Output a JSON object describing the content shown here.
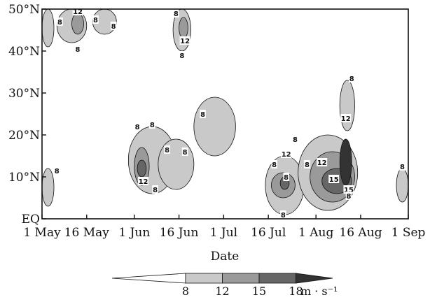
{
  "chart_data": {
    "type": "heatmap",
    "xlabel": "Date",
    "x_ticks": [
      "1 May",
      "16 May",
      "1 Jun",
      "16 Jun",
      "1 Jul",
      "16 Jul",
      "1 Aug",
      "16 Aug",
      "1 Sep"
    ],
    "x_range": [
      "1 May",
      "1 Sep"
    ],
    "y_ticks": [
      "EQ",
      "10°N",
      "20°N",
      "30°N",
      "40°N",
      "50°N"
    ],
    "y_range": [
      0,
      50
    ],
    "levels": [
      8,
      12,
      15,
      18
    ],
    "level_colors": [
      "#ffffff",
      "#c9c9c9",
      "#9a9a9a",
      "#666666",
      "#333333"
    ],
    "colorbar_unit": "m · s⁻¹",
    "contour_labels": [
      {
        "text": "8",
        "date": "6 May",
        "lat": 11.5
      },
      {
        "text": "8",
        "date": "7 May",
        "lat": 47
      },
      {
        "text": "12",
        "date": "13 May",
        "lat": 49.5
      },
      {
        "text": "8",
        "date": "13 May",
        "lat": 40.5
      },
      {
        "text": "8",
        "date": "19 May",
        "lat": 47.5
      },
      {
        "text": "8",
        "date": "25 May",
        "lat": 46
      },
      {
        "text": "8",
        "date": "2 Jun",
        "lat": 22
      },
      {
        "text": "12",
        "date": "4 Jun",
        "lat": 9
      },
      {
        "text": "8",
        "date": "7 Jun",
        "lat": 22.5
      },
      {
        "text": "8",
        "date": "12 Jun",
        "lat": 16.5
      },
      {
        "text": "8",
        "date": "15 Jun",
        "lat": 49
      },
      {
        "text": "12",
        "date": "18 Jun",
        "lat": 42.5
      },
      {
        "text": "8",
        "date": "17 Jun",
        "lat": 39
      },
      {
        "text": "8",
        "date": "18 Jun",
        "lat": 16
      },
      {
        "text": "8",
        "date": "8 Jun",
        "lat": 7
      },
      {
        "text": "8",
        "date": "24 Jun",
        "lat": 25
      },
      {
        "text": "8",
        "date": "25 Jul",
        "lat": 19
      },
      {
        "text": "12",
        "date": "22 Jul",
        "lat": 15.5
      },
      {
        "text": "8",
        "date": "18 Jul",
        "lat": 13
      },
      {
        "text": "8",
        "date": "22 Jul",
        "lat": 10
      },
      {
        "text": "8",
        "date": "21 Jul",
        "lat": 1
      },
      {
        "text": "8",
        "date": "29 Jul",
        "lat": 13
      },
      {
        "text": "12",
        "date": "3 Aug",
        "lat": 13.5
      },
      {
        "text": "15",
        "date": "7 Aug",
        "lat": 9.5
      },
      {
        "text": "15",
        "date": "12 Aug",
        "lat": 7
      },
      {
        "text": "8",
        "date": "12 Aug",
        "lat": 5.5
      },
      {
        "text": "12",
        "date": "11 Aug",
        "lat": 24
      },
      {
        "text": "8",
        "date": "13 Aug",
        "lat": 33.5
      },
      {
        "text": "8",
        "date": "30 Aug",
        "lat": 12.5
      }
    ],
    "regions": [
      {
        "level": 8,
        "date_start": "1 May",
        "date_end": "5 May",
        "lat_min": 3,
        "lat_max": 12
      },
      {
        "level": 8,
        "date_start": "1 May",
        "date_end": "5 May",
        "lat_min": 41,
        "lat_max": 50
      },
      {
        "level": 8,
        "date_start": "6 May",
        "date_end": "16 May",
        "lat_min": 42,
        "lat_max": 50
      },
      {
        "level": 12,
        "date_start": "11 May",
        "date_end": "15 May",
        "lat_min": 44,
        "lat_max": 49
      },
      {
        "level": 8,
        "date_start": "18 May",
        "date_end": "26 May",
        "lat_min": 44,
        "lat_max": 50
      },
      {
        "level": 8,
        "date_start": "30 May",
        "date_end": "15 Jun",
        "lat_min": 6,
        "lat_max": 22
      },
      {
        "level": 12,
        "date_start": "1 Jun",
        "date_end": "6 Jun",
        "lat_min": 8,
        "lat_max": 17
      },
      {
        "level": 15,
        "date_start": "2 Jun",
        "date_end": "5 Jun",
        "lat_min": 10,
        "lat_max": 14
      },
      {
        "level": 8,
        "date_start": "14 Jun",
        "date_end": "20 Jun",
        "lat_min": 40,
        "lat_max": 50
      },
      {
        "level": 12,
        "date_start": "16 Jun",
        "date_end": "19 Jun",
        "lat_min": 43,
        "lat_max": 48
      },
      {
        "level": 8,
        "date_start": "9 Jun",
        "date_end": "21 Jun",
        "lat_min": 7,
        "lat_max": 19
      },
      {
        "level": 8,
        "date_start": "21 Jun",
        "date_end": "5 Jul",
        "lat_min": 15,
        "lat_max": 29
      },
      {
        "level": 8,
        "date_start": "15 Jul",
        "date_end": "28 Jul",
        "lat_min": 1,
        "lat_max": 15
      },
      {
        "level": 12,
        "date_start": "17 Jul",
        "date_end": "25 Jul",
        "lat_min": 5,
        "lat_max": 11
      },
      {
        "level": 15,
        "date_start": "20 Jul",
        "date_end": "23 Jul",
        "lat_min": 7,
        "lat_max": 10
      },
      {
        "level": 8,
        "date_start": "26 Jul",
        "date_end": "15 Aug",
        "lat_min": 2,
        "lat_max": 20
      },
      {
        "level": 12,
        "date_start": "30 Jul",
        "date_end": "14 Aug",
        "lat_min": 4,
        "lat_max": 16
      },
      {
        "level": 15,
        "date_start": "3 Aug",
        "date_end": "13 Aug",
        "lat_min": 6,
        "lat_max": 12
      },
      {
        "level": 18,
        "date_start": "9 Aug",
        "date_end": "13 Aug",
        "lat_min": 8,
        "lat_max": 19
      },
      {
        "level": 8,
        "date_start": "9 Aug",
        "date_end": "14 Aug",
        "lat_min": 21,
        "lat_max": 33
      },
      {
        "level": 8,
        "date_start": "28 Aug",
        "date_end": "1 Sep",
        "lat_min": 4,
        "lat_max": 12
      }
    ]
  }
}
